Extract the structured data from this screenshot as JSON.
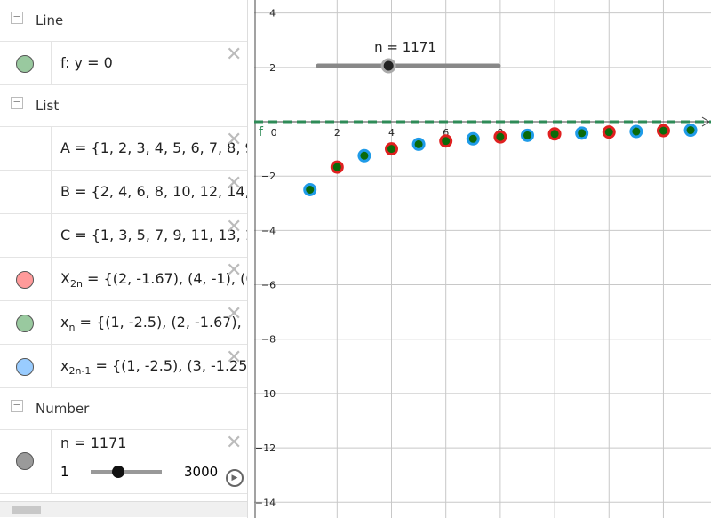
{
  "algebra": {
    "sections": [
      {
        "title": "Line",
        "items": [
          {
            "label": "f: y = 0",
            "color": "#99c99f"
          }
        ]
      },
      {
        "title": "List",
        "items": [
          {
            "label": "A = {1, 2, 3, 4, 5, 6, 7, 8, 9"
          },
          {
            "label": "B = {2, 4, 6, 8, 10, 12, 14,"
          },
          {
            "label": "C = {1, 3, 5, 7, 9, 11, 13, 1"
          },
          {
            "name": "X",
            "sub": "2n",
            "label": " = {(2, -1.67), (4, -1), (6",
            "color": "#ff9a9a"
          },
          {
            "name": "x",
            "sub": "n",
            "label": " = {(1, -2.5), (2, -1.67), (",
            "color": "#99c99f"
          },
          {
            "name": "x",
            "sub": "2n-1",
            "label": " = {(1, -2.5), (3, -1.25)",
            "color": "#99ccff"
          }
        ]
      },
      {
        "title": "Number",
        "items": [
          {
            "label": "n = 1171",
            "color": "#9a9a9a",
            "slider": {
              "min": 1,
              "max": 3000,
              "value": 1171
            }
          }
        ]
      }
    ]
  },
  "graph": {
    "slider_label": "n = 1171",
    "line_label": "f",
    "xlim": [
      -1.05,
      15.75
    ],
    "ylim": [
      -14.58,
      4.48
    ],
    "xticks": [
      0,
      2,
      4,
      6,
      8
    ],
    "yticks": [
      4,
      2,
      {
        "value": -2,
        "label": "−2"
      },
      {
        "value": -4,
        "label": "−4"
      },
      {
        "value": -6,
        "label": "−6"
      },
      {
        "value": -8,
        "label": "−8"
      },
      {
        "value": -10,
        "label": "−10"
      },
      {
        "value": -12,
        "label": "−12"
      },
      {
        "value": -14,
        "label": "−14"
      }
    ],
    "points": {
      "x": [
        1,
        2,
        3,
        4,
        5,
        6,
        7,
        8,
        9,
        10,
        11,
        12,
        13,
        14,
        15
      ],
      "y": [
        -2.5,
        -1.67,
        -1.25,
        -1,
        -0.83,
        -0.71,
        -0.63,
        -0.56,
        -0.5,
        -0.45,
        -0.42,
        -0.38,
        -0.36,
        -0.33,
        -0.31
      ]
    },
    "odd_color": "#1f9be8",
    "even_color": "#e02020",
    "center_color": "#0a6a0a",
    "line_color": "#2e8b57"
  }
}
